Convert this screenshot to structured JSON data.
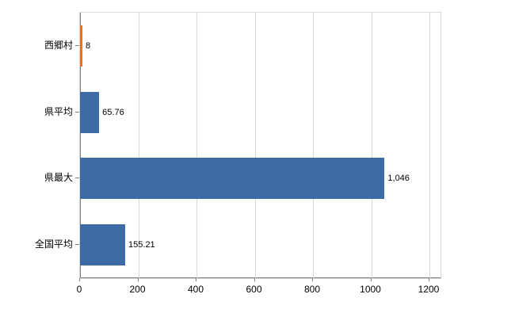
{
  "chart_data": {
    "type": "bar",
    "orientation": "horizontal",
    "title": "",
    "xlabel": "",
    "ylabel": "",
    "categories": [
      "西郷村",
      "県平均",
      "県最大",
      "全国平均"
    ],
    "values": [
      8,
      65.76,
      1046,
      155.21
    ],
    "value_labels": [
      "8",
      "65.76",
      "1,046",
      "155.21"
    ],
    "xlim": [
      0,
      1200
    ],
    "x_ticks": [
      0,
      200,
      400,
      600,
      800,
      1000,
      1200
    ],
    "x_tick_labels": [
      "0",
      "200",
      "400",
      "600",
      "800",
      "1000",
      "1200"
    ],
    "grid": true,
    "legend_position": "none",
    "bar_color": "#3c6ba5",
    "highlight_color": "#e8731c",
    "highlight_index": 0,
    "gridline_color": "#d9d9d9",
    "axis_color": "#808080"
  }
}
